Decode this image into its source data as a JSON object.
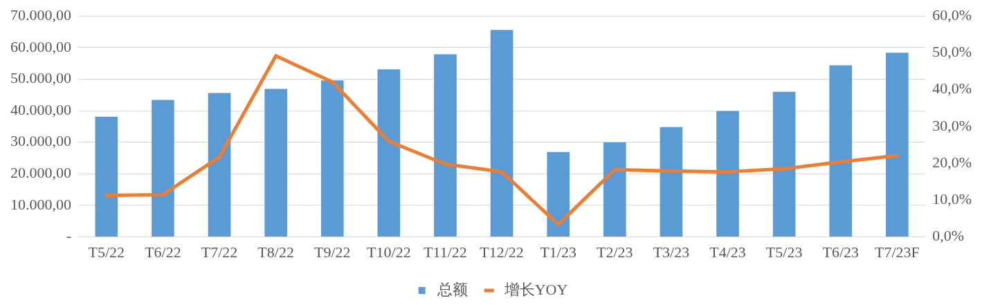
{
  "chart_data": {
    "type": "bar",
    "categories": [
      "T5/22",
      "T6/22",
      "T7/22",
      "T8/22",
      "T9/22",
      "T10/22",
      "T11/22",
      "T12/22",
      "T1/23",
      "T2/23",
      "T3/23",
      "T4/23",
      "T5/23",
      "T6/23",
      "T7/23F"
    ],
    "series": [
      {
        "name": "总额",
        "color": "#5b9bd5",
        "values": [
          38100,
          43400,
          45600,
          46900,
          49600,
          53100,
          57900,
          65600,
          26900,
          30000,
          34800,
          39900,
          46000,
          54400,
          58400
        ]
      },
      {
        "name": "增长YOY",
        "type": "line",
        "axis": "y2",
        "color": "#ed7d31",
        "values": [
          11.3,
          11.5,
          21.7,
          49.2,
          42.1,
          26.0,
          19.8,
          17.7,
          3.4,
          18.3,
          17.9,
          17.7,
          18.5,
          20.4,
          22.1
        ]
      }
    ],
    "ylim": [
      0,
      70000
    ],
    "yticks": [
      {
        "value": 0,
        "label": "-"
      },
      {
        "value": 10000,
        "label": "10.000,00"
      },
      {
        "value": 20000,
        "label": "20.000,00"
      },
      {
        "value": 30000,
        "label": "30.000,00"
      },
      {
        "value": 40000,
        "label": "40.000,00"
      },
      {
        "value": 50000,
        "label": "50.000,00"
      },
      {
        "value": 60000,
        "label": "60.000,00"
      },
      {
        "value": 70000,
        "label": "70.000,00"
      }
    ],
    "y2lim": [
      0,
      60
    ],
    "y2ticks": [
      {
        "value": 0,
        "label": "0,0%"
      },
      {
        "value": 10,
        "label": "10,0%"
      },
      {
        "value": 20,
        "label": "20,0%"
      },
      {
        "value": 30,
        "label": "30,0%"
      },
      {
        "value": 40,
        "label": "40,0%"
      },
      {
        "value": 50,
        "label": "50,0%"
      },
      {
        "value": 60,
        "label": "60,0%"
      }
    ],
    "grid": "y",
    "legend": "bottom",
    "marker": "none",
    "line_style": "solid"
  }
}
